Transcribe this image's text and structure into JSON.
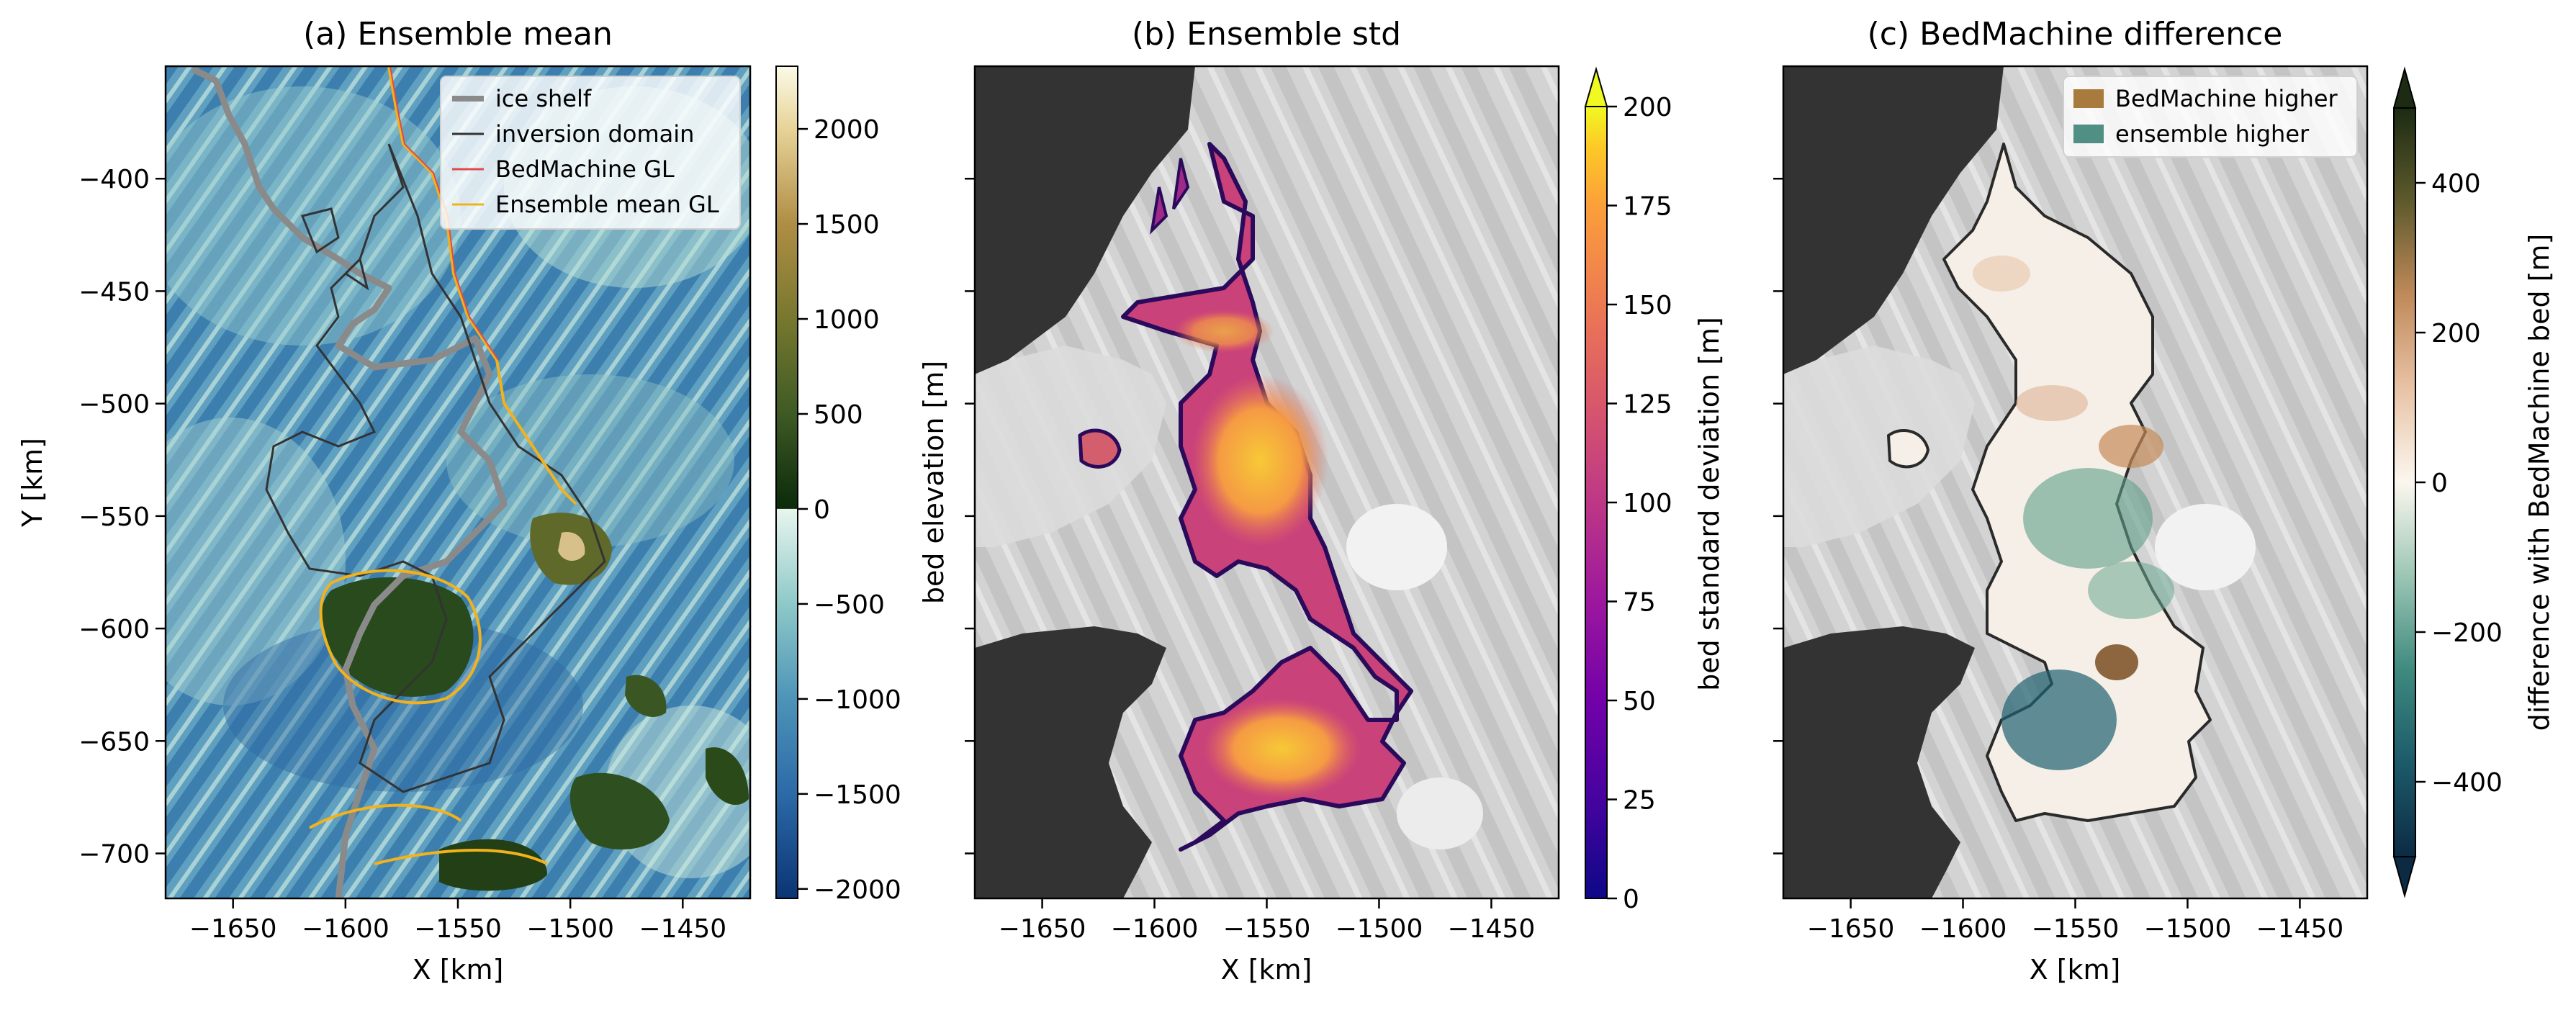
{
  "chart_data": [
    {
      "type": "heatmap",
      "title": "(a) Ensemble mean",
      "xlabel": "X [km]",
      "ylabel": "Y [km]",
      "xlim": [
        -1680,
        -1420
      ],
      "ylim": [
        -720,
        -350
      ],
      "xticks": [
        {
          "value": -1650,
          "label": "−1650"
        },
        {
          "value": -1600,
          "label": "−1600"
        },
        {
          "value": -1550,
          "label": "−1550"
        },
        {
          "value": -1500,
          "label": "−1500"
        },
        {
          "value": -1450,
          "label": "−1450"
        }
      ],
      "yticks": [
        {
          "value": -400,
          "label": "−400"
        },
        {
          "value": -450,
          "label": "−450"
        },
        {
          "value": -500,
          "label": "−500"
        },
        {
          "value": -550,
          "label": "−550"
        },
        {
          "value": -600,
          "label": "−600"
        },
        {
          "value": -650,
          "label": "−650"
        },
        {
          "value": -700,
          "label": "−700"
        }
      ],
      "colorbar": {
        "label": "bed elevation [m]",
        "range": [
          -2050,
          2330
        ],
        "colormap_stops": [
          {
            "value": -2050,
            "color": "#0b3474"
          },
          {
            "value": -1500,
            "color": "#2c6aa8"
          },
          {
            "value": -1000,
            "color": "#4d94b8"
          },
          {
            "value": -500,
            "color": "#8ec9c8"
          },
          {
            "value": 0,
            "color": "#e8f5ee"
          },
          {
            "value": 1,
            "color": "#0a2a0a"
          },
          {
            "value": 500,
            "color": "#3e5a24"
          },
          {
            "value": 1000,
            "color": "#77782e"
          },
          {
            "value": 1500,
            "color": "#b08d45"
          },
          {
            "value": 2000,
            "color": "#e7d398"
          },
          {
            "value": 2330,
            "color": "#fbfae8"
          }
        ],
        "ticks": [
          {
            "value": 2000,
            "label": "2000"
          },
          {
            "value": 1500,
            "label": "1500"
          },
          {
            "value": 1000,
            "label": "1000"
          },
          {
            "value": 500,
            "label": "500"
          },
          {
            "value": 0,
            "label": "0"
          },
          {
            "value": -500,
            "label": "−500"
          },
          {
            "value": -1000,
            "label": "−1000"
          },
          {
            "value": -1500,
            "label": "−1500"
          },
          {
            "value": -2000,
            "label": "−2000"
          }
        ]
      },
      "legend": {
        "placement": "top-right",
        "entries": [
          {
            "label": "ice shelf",
            "color": "#8a8a8a",
            "style": "thick-line"
          },
          {
            "label": "inversion domain",
            "color": "#333333",
            "style": "thin-line"
          },
          {
            "label": "BedMachine GL",
            "color": "#e04a4a",
            "style": "thin-line"
          },
          {
            "label": "Ensemble mean GL",
            "color": "#f2b21b",
            "style": "thin-line"
          }
        ]
      }
    },
    {
      "type": "heatmap",
      "title": "(b) Ensemble std",
      "xlabel": "X [km]",
      "ylabel": "",
      "xlim": [
        -1680,
        -1420
      ],
      "ylim": [
        -720,
        -350
      ],
      "xticks": [
        {
          "value": -1650,
          "label": "−1650"
        },
        {
          "value": -1600,
          "label": "−1600"
        },
        {
          "value": -1550,
          "label": "−1550"
        },
        {
          "value": -1500,
          "label": "−1500"
        },
        {
          "value": -1450,
          "label": "−1450"
        }
      ],
      "colorbar": {
        "label": "bed standard deviation [m]",
        "range": [
          0,
          200
        ],
        "extend": "max",
        "colormap_stops": [
          {
            "value": 0,
            "color": "#0d0887"
          },
          {
            "value": 25,
            "color": "#46039f"
          },
          {
            "value": 50,
            "color": "#7201a8"
          },
          {
            "value": 75,
            "color": "#9c179e"
          },
          {
            "value": 100,
            "color": "#bd3786"
          },
          {
            "value": 125,
            "color": "#d8576b"
          },
          {
            "value": 150,
            "color": "#ed7953"
          },
          {
            "value": 175,
            "color": "#fb9f3a"
          },
          {
            "value": 190,
            "color": "#fdca26"
          },
          {
            "value": 200,
            "color": "#f0f921"
          }
        ],
        "ticks": [
          {
            "value": 200,
            "label": "200"
          },
          {
            "value": 175,
            "label": "175"
          },
          {
            "value": 150,
            "label": "150"
          },
          {
            "value": 125,
            "label": "125"
          },
          {
            "value": 100,
            "label": "100"
          },
          {
            "value": 75,
            "label": "75"
          },
          {
            "value": 50,
            "label": "50"
          },
          {
            "value": 25,
            "label": "25"
          },
          {
            "value": 0,
            "label": "0"
          }
        ]
      }
    },
    {
      "type": "heatmap",
      "title": "(c) BedMachine difference",
      "xlabel": "X [km]",
      "ylabel": "",
      "xlim": [
        -1680,
        -1420
      ],
      "ylim": [
        -720,
        -350
      ],
      "xticks": [
        {
          "value": -1650,
          "label": "−1650"
        },
        {
          "value": -1600,
          "label": "−1600"
        },
        {
          "value": -1550,
          "label": "−1550"
        },
        {
          "value": -1500,
          "label": "−1500"
        },
        {
          "value": -1450,
          "label": "−1450"
        }
      ],
      "colorbar": {
        "label": "difference with BedMachine bed [m]",
        "range": [
          -500,
          500
        ],
        "extend": "both",
        "colormap_stops": [
          {
            "value": -500,
            "color": "#0c2b43"
          },
          {
            "value": -375,
            "color": "#1c5a6a"
          },
          {
            "value": -250,
            "color": "#3f8a7f"
          },
          {
            "value": -125,
            "color": "#9cc6b4"
          },
          {
            "value": 0,
            "color": "#fbf7ef"
          },
          {
            "value": 125,
            "color": "#e8c3a6"
          },
          {
            "value": 250,
            "color": "#c08a5a"
          },
          {
            "value": 375,
            "color": "#5e5a2c"
          },
          {
            "value": 500,
            "color": "#1c2b12"
          }
        ],
        "ticks": [
          {
            "value": 400,
            "label": "400"
          },
          {
            "value": 200,
            "label": "200"
          },
          {
            "value": 0,
            "label": "0"
          },
          {
            "value": -200,
            "label": "−200"
          },
          {
            "value": -400,
            "label": "−400"
          }
        ]
      },
      "legend": {
        "placement": "top-right",
        "entries": [
          {
            "label": "BedMachine higher",
            "color": "#a87a3e",
            "style": "patch"
          },
          {
            "label": "ensemble higher",
            "color": "#4f8f84",
            "style": "patch"
          }
        ]
      }
    }
  ]
}
